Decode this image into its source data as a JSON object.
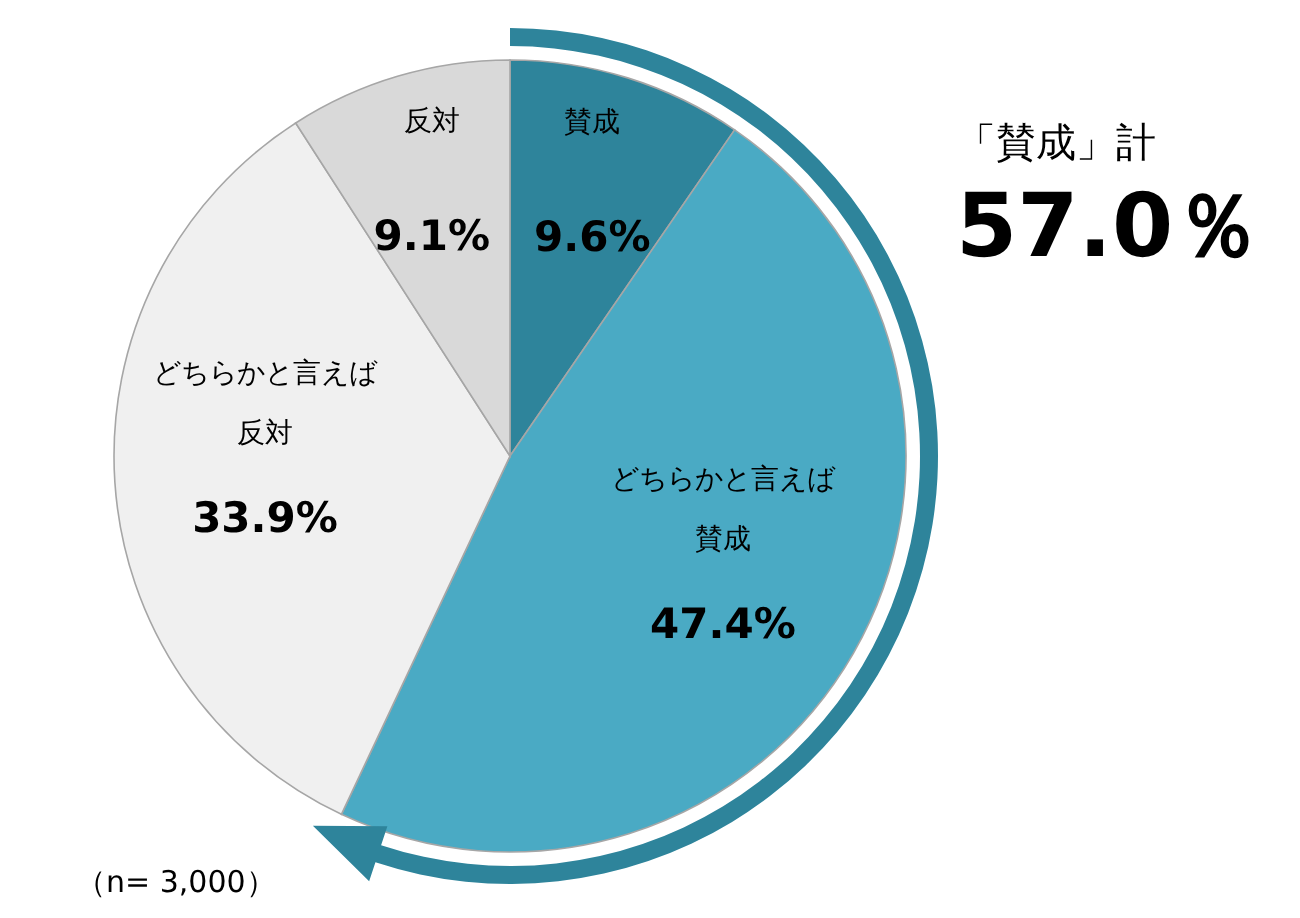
{
  "chart_data": {
    "type": "pie",
    "categories": [
      "賛成",
      "どちらかと言えば賛成",
      "どちらかと言えば反対",
      "反対"
    ],
    "values": [
      9.6,
      47.4,
      33.9,
      9.1
    ],
    "colors": [
      "#2e849b",
      "#4aaac4",
      "#f0f0f0",
      "#d9d9d9"
    ],
    "value_labels": [
      "9.6%",
      "47.4%",
      "33.9%",
      "9.1%"
    ],
    "annotations": [
      "「賛成」計",
      "57.0％",
      "（n= 3,000）"
    ]
  }
}
